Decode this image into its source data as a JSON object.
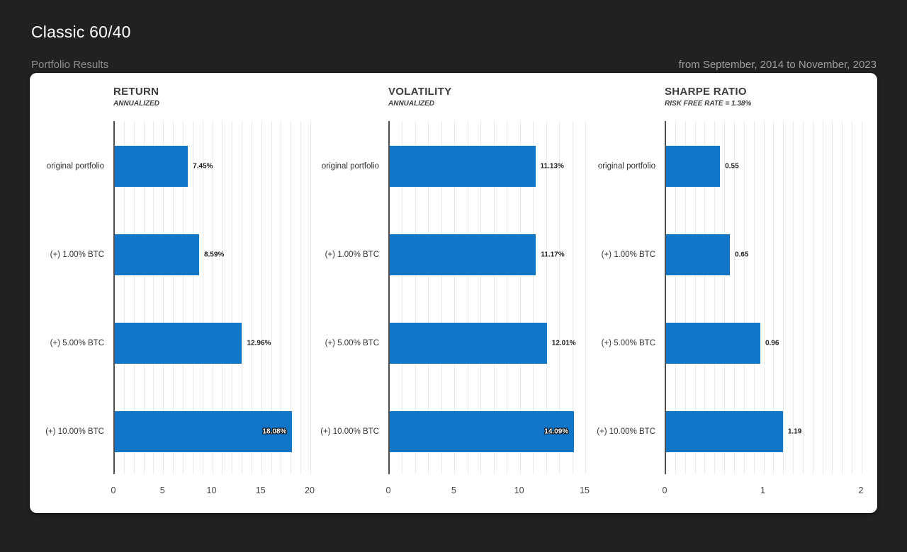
{
  "header": {
    "title": "Classic 60/40",
    "subtitle": "Portfolio Results",
    "date_range": "from September, 2014 to November, 2023"
  },
  "colors": {
    "background": "#212121",
    "card": "#ffffff",
    "bar": "#1276c8",
    "grid": "#e9e9e9",
    "axis": "#4f4f4f"
  },
  "chart_data": [
    {
      "type": "bar",
      "orientation": "horizontal",
      "title": "RETURN",
      "subtitle": "ANNUALIZED",
      "categories": [
        "original portfolio",
        "(+) 1.00% BTC",
        "(+) 5.00% BTC",
        "(+) 10.00% BTC"
      ],
      "values": [
        7.45,
        8.59,
        12.96,
        18.08
      ],
      "value_labels": [
        "7.45%",
        "8.59%",
        "12.96%",
        "18.08%"
      ],
      "xlim": [
        0,
        20
      ],
      "xticks": [
        0,
        5,
        10,
        15,
        20
      ],
      "grid_step": 1,
      "grid": true,
      "legend": false
    },
    {
      "type": "bar",
      "orientation": "horizontal",
      "title": "VOLATILITY",
      "subtitle": "ANNUALIZED",
      "categories": [
        "original portfolio",
        "(+) 1.00% BTC",
        "(+) 5.00% BTC",
        "(+) 10.00% BTC"
      ],
      "values": [
        11.13,
        11.17,
        12.01,
        14.09
      ],
      "value_labels": [
        "11.13%",
        "11.17%",
        "12.01%",
        "14.09%"
      ],
      "xlim": [
        0,
        15
      ],
      "xticks": [
        0,
        5,
        10,
        15
      ],
      "grid_step": 1,
      "grid": true,
      "legend": false
    },
    {
      "type": "bar",
      "orientation": "horizontal",
      "title": "SHARPE RATIO",
      "subtitle": "RISK FREE RATE = 1.38%",
      "categories": [
        "original portfolio",
        "(+) 1.00% BTC",
        "(+) 5.00% BTC",
        "(+) 10.00% BTC"
      ],
      "values": [
        0.55,
        0.65,
        0.96,
        1.19
      ],
      "value_labels": [
        "0.55",
        "0.65",
        "0.96",
        "1.19"
      ],
      "xlim": [
        0,
        2
      ],
      "xticks": [
        0,
        1,
        2
      ],
      "grid_step": 0.1,
      "grid": true,
      "legend": false
    }
  ]
}
